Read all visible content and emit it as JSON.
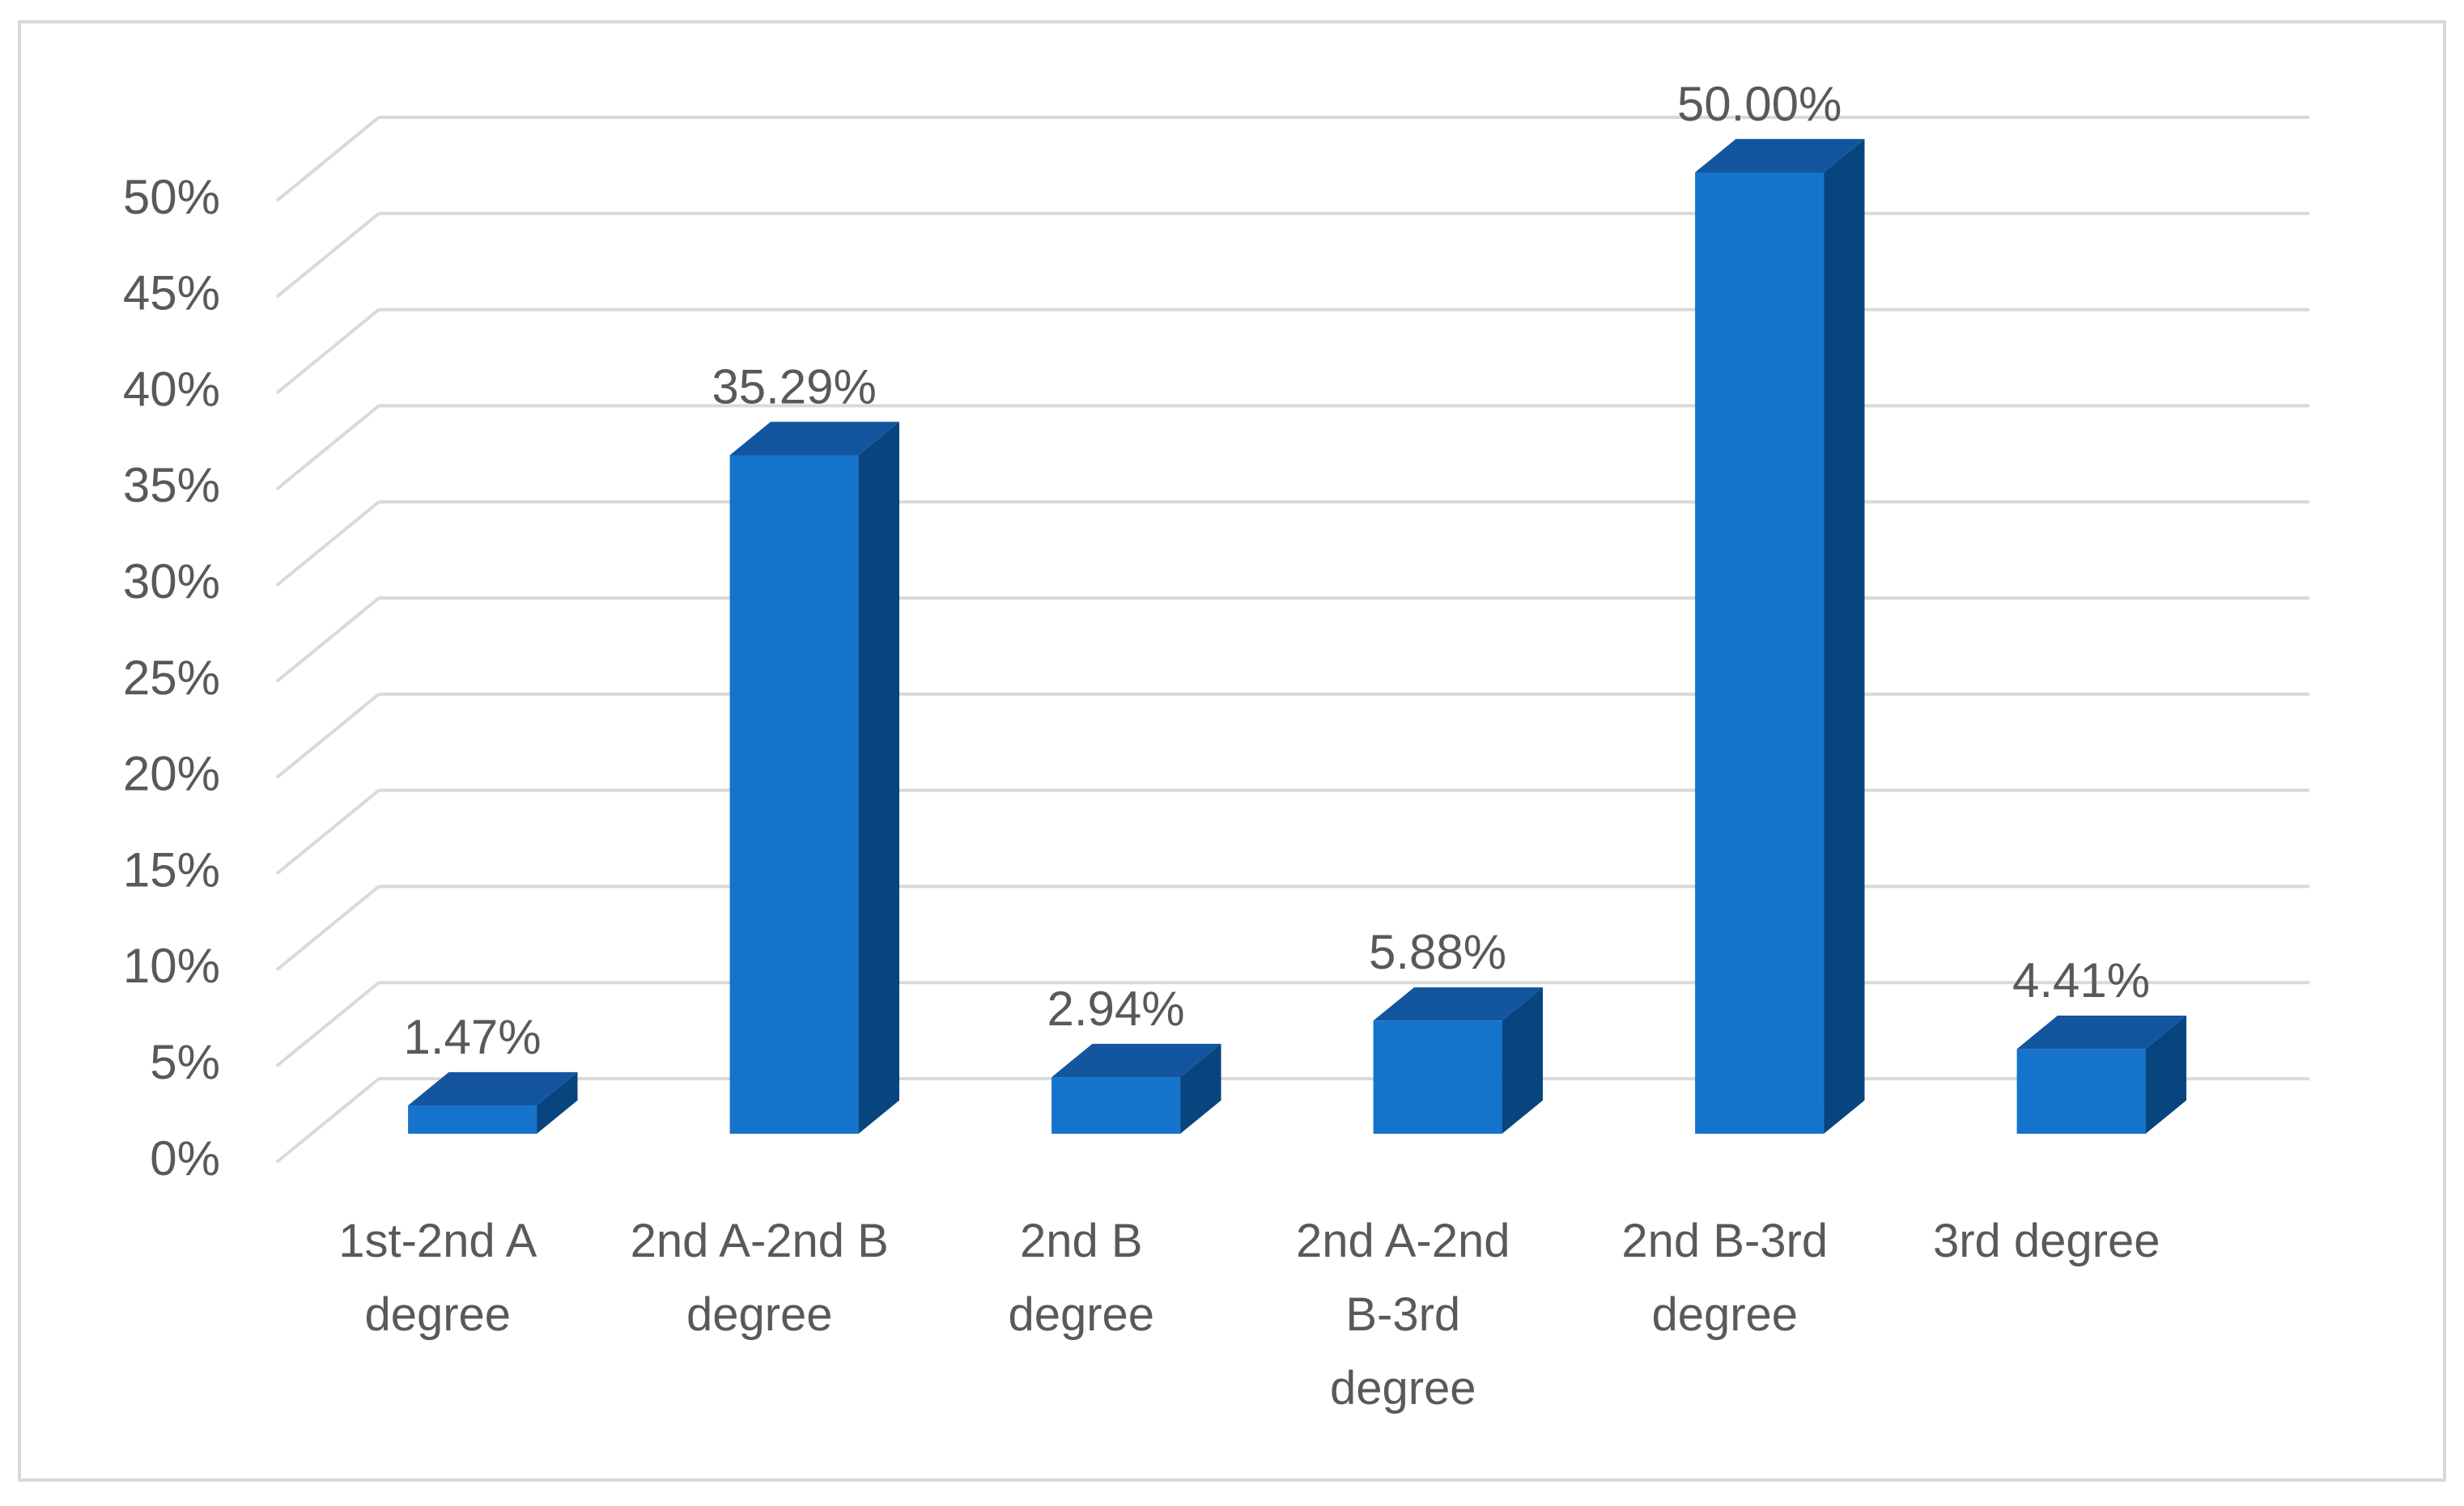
{
  "chart_data": {
    "type": "bar3d",
    "categories": [
      "1st-2nd A degree",
      "2nd A-2nd B degree",
      "2nd B degree",
      "2nd A-2nd B-3rd degree",
      "2nd B-3rd degree",
      "3rd degree"
    ],
    "values": [
      1.47,
      35.29,
      2.94,
      5.88,
      50.0,
      4.41
    ],
    "value_labels": [
      "1.47%",
      "35.29%",
      "2.94%",
      "5.88%",
      "50.00%",
      "4.41%"
    ],
    "colors": {
      "front": "#1573cc",
      "top": "#13559e",
      "side": "#08457f"
    },
    "ylim": [
      0,
      50
    ],
    "yticks": [
      {
        "value": 0,
        "label": "0%"
      },
      {
        "value": 5,
        "label": "5%"
      },
      {
        "value": 10,
        "label": "10%"
      },
      {
        "value": 15,
        "label": "15%"
      },
      {
        "value": 20,
        "label": "20%"
      },
      {
        "value": 25,
        "label": "25%"
      },
      {
        "value": 30,
        "label": "30%"
      },
      {
        "value": 35,
        "label": "35%"
      },
      {
        "value": 40,
        "label": "40%"
      },
      {
        "value": 45,
        "label": "45%"
      },
      {
        "value": 50,
        "label": "50%"
      }
    ],
    "grid": true
  }
}
